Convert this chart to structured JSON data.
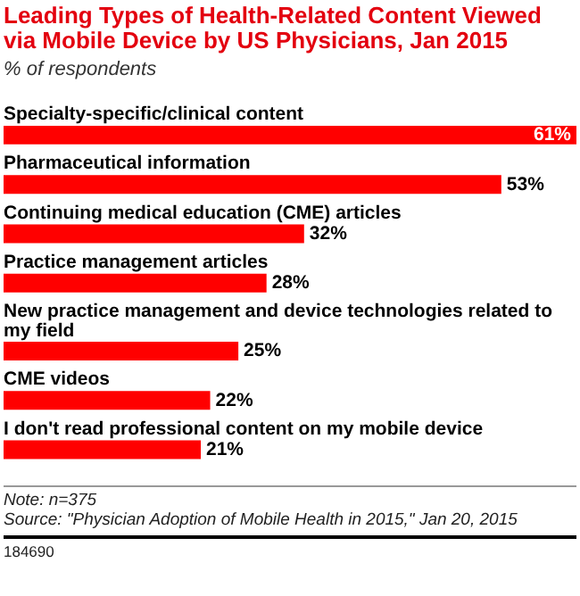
{
  "chart_data": {
    "type": "bar",
    "orientation": "horizontal",
    "title": "Leading Types of Health-Related Content Viewed via Mobile Device by US Physicians, Jan 2015",
    "subtitle": "% of respondents",
    "categories": [
      "Specialty-specific/clinical content",
      "Pharmaceutical information",
      "Continuing medical education (CME) articles",
      "Practice management articles",
      "New practice management and device technologies related to my field",
      "CME videos",
      "I don't read professional content on my mobile device"
    ],
    "values": [
      61,
      53,
      32,
      28,
      25,
      22,
      21
    ],
    "value_labels": [
      "61%",
      "53%",
      "32%",
      "28%",
      "25%",
      "22%",
      "21%"
    ],
    "color": "#ff0000",
    "annotations": [
      "Note: n=375",
      "Source: \"Physician Adoption of Mobile Health in 2015,\" Jan 20, 2015",
      "184690"
    ]
  }
}
